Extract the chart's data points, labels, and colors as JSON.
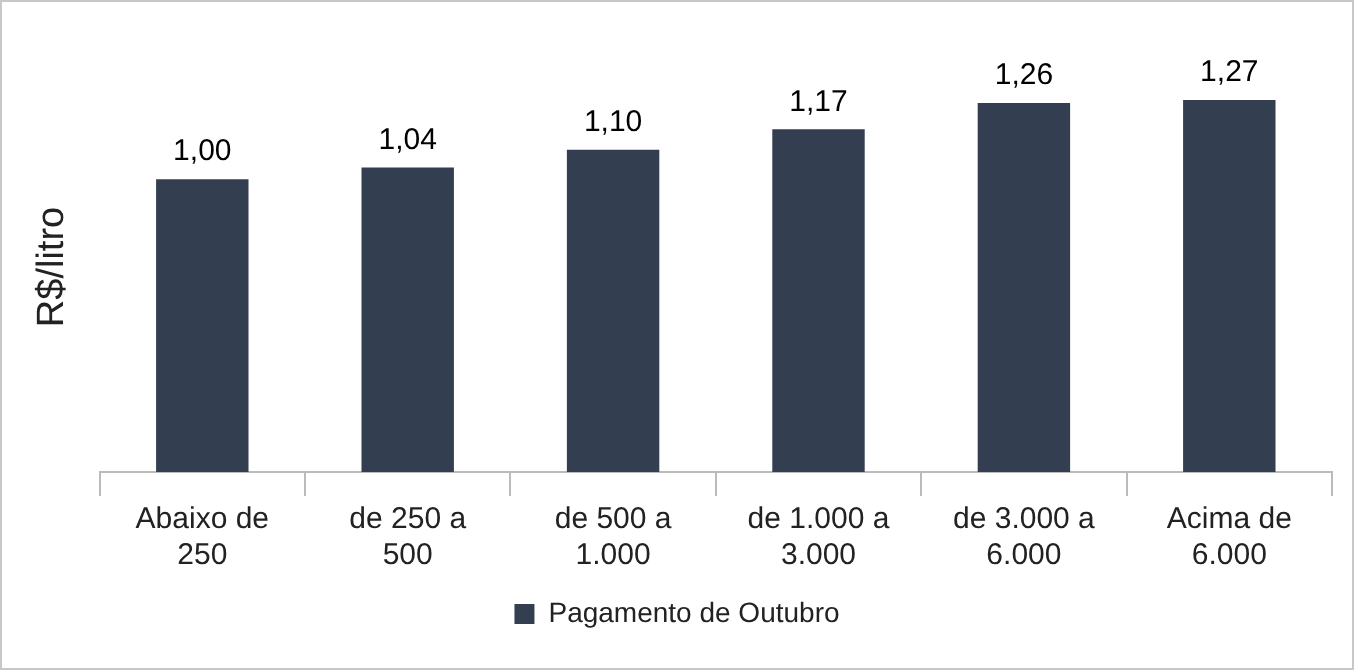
{
  "chart_data": {
    "type": "bar",
    "ylabel": "R$/litro",
    "categories": [
      "Abaixo de 250",
      "de 250 a 500",
      "de 500 a 1.000",
      "de 1.000 a 3.000",
      "de 3.000 a 6.000",
      "Acima de 6.000"
    ],
    "series": [
      {
        "name": "Pagamento de Outubro",
        "color": "#333f50",
        "values": [
          1.0,
          1.04,
          1.1,
          1.17,
          1.26,
          1.27
        ],
        "value_labels": [
          "1,00",
          "1,04",
          "1,10",
          "1,17",
          "1,26",
          "1,27"
        ]
      }
    ],
    "grid": false,
    "legend": "bottom"
  }
}
